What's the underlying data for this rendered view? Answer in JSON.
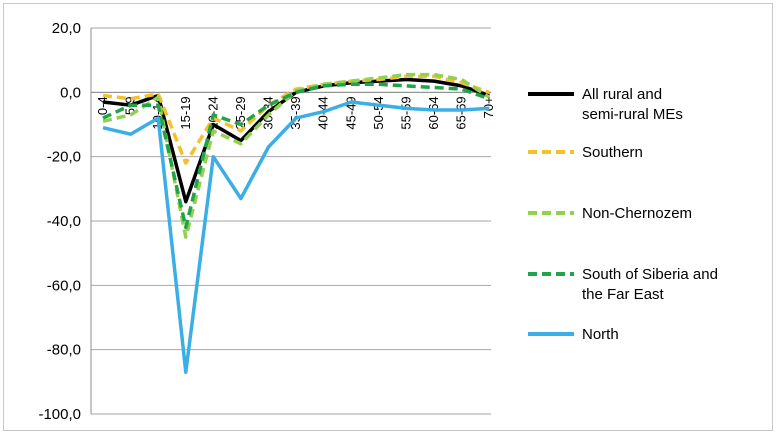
{
  "chart_data": {
    "type": "line",
    "title": "",
    "xlabel": "",
    "ylabel": "",
    "categories": [
      "0-4",
      "5-9",
      "10-14",
      "15-19",
      "20-24",
      "25-29",
      "30-34",
      "35-39",
      "40-44",
      "45-49",
      "50-54",
      "55-59",
      "60-64",
      "65-69",
      "70+"
    ],
    "ylim": [
      -100,
      20
    ],
    "yticks": [
      20,
      0,
      -20,
      -40,
      -60,
      -80,
      -100
    ],
    "ytick_labels": [
      "20,0",
      "0,0",
      "-20,0",
      "-40,0",
      "-60,0",
      "-80,0",
      "-100,0"
    ],
    "grid": "horizontal",
    "legend_position": "right",
    "series": [
      {
        "name": "All rural and semi-rural MEs",
        "color": "#000000",
        "dash": "solid",
        "values": [
          -3,
          -4,
          -1,
          -34,
          -10,
          -15,
          -6,
          0,
          2,
          3,
          3.5,
          4,
          3.5,
          2,
          -1
        ]
      },
      {
        "name": "Southern",
        "color": "#F5C02C",
        "dash": "dashed",
        "values": [
          -1,
          -2,
          -0.5,
          -22,
          -8,
          -12,
          -4,
          1,
          2.5,
          3.5,
          4,
          5,
          5,
          3,
          0
        ]
      },
      {
        "name": "Non-Chernozem",
        "color": "#92D050",
        "dash": "dashed",
        "values": [
          -9,
          -7,
          -1.5,
          -45,
          -12,
          -16,
          -7,
          0.5,
          2.5,
          3.5,
          4.5,
          5.5,
          5.5,
          4,
          -1.5
        ]
      },
      {
        "name": "South of Siberia and the Far East",
        "color": "#21A34A",
        "dash": "dashed",
        "values": [
          -8,
          -4,
          -4,
          -42,
          -7,
          -10,
          -4,
          0,
          2,
          2.5,
          2.5,
          2,
          1.5,
          1,
          -2
        ]
      },
      {
        "name": "North",
        "color": "#3CAEE6",
        "dash": "solid",
        "values": [
          -11,
          -13,
          -8,
          -87,
          -20,
          -33,
          -17,
          -8,
          -6,
          -3,
          -4,
          -5,
          -5.5,
          -5.5,
          -5
        ]
      }
    ]
  }
}
